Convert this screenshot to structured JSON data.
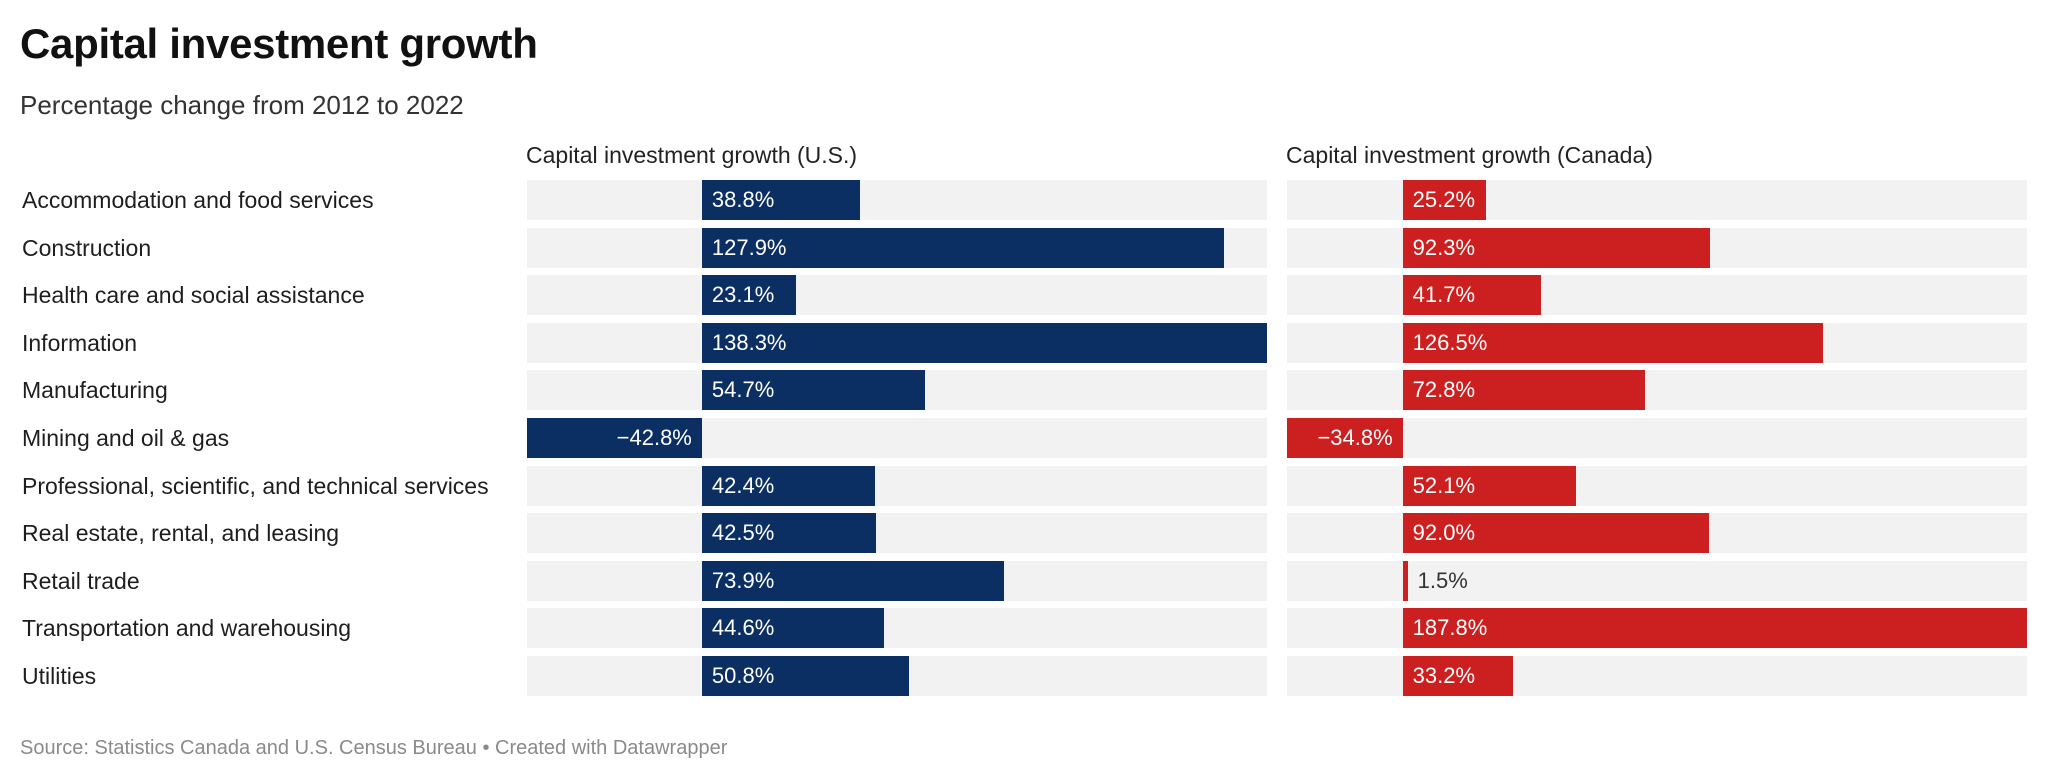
{
  "chart_data": {
    "type": "bar",
    "orientation": "horizontal",
    "title": "Capital investment growth",
    "subtitle": "Percentage change from 2012 to 2022",
    "categories": [
      "Accommodation and food services",
      "Construction",
      "Health care and social assistance",
      "Information",
      "Manufacturing",
      "Mining and oil & gas",
      "Professional, scientific, and technical services",
      "Real estate, rental, and leasing",
      "Retail trade",
      "Transportation and warehousing",
      "Utilities"
    ],
    "series": [
      {
        "name": "Capital investment growth (U.S.)",
        "color": "#0b2f62",
        "values": [
          38.8,
          127.9,
          23.1,
          138.3,
          54.7,
          -42.8,
          42.4,
          42.5,
          73.9,
          44.6,
          50.8
        ],
        "labels": [
          "38.8%",
          "127.9%",
          "23.1%",
          "138.3%",
          "54.7%",
          "−42.8%",
          "42.4%",
          "42.5%",
          "73.9%",
          "44.6%",
          "50.8%"
        ],
        "xlim": [
          -42.8,
          138.3
        ]
      },
      {
        "name": "Capital investment growth (Canada)",
        "color": "#cc1f1f",
        "values": [
          25.2,
          92.3,
          41.7,
          126.5,
          72.8,
          -34.8,
          52.1,
          92.0,
          1.5,
          187.8,
          33.2
        ],
        "labels": [
          "25.2%",
          "92.3%",
          "41.7%",
          "126.5%",
          "72.8%",
          "−34.8%",
          "52.1%",
          "92.0%",
          "1.5%",
          "187.8%",
          "33.2%"
        ],
        "xlim": [
          -34.8,
          187.8
        ]
      }
    ],
    "grid": false,
    "legend": "panel-titles"
  },
  "footer": "Source: Statistics Canada and U.S. Census Bureau • Created with Datawrapper"
}
